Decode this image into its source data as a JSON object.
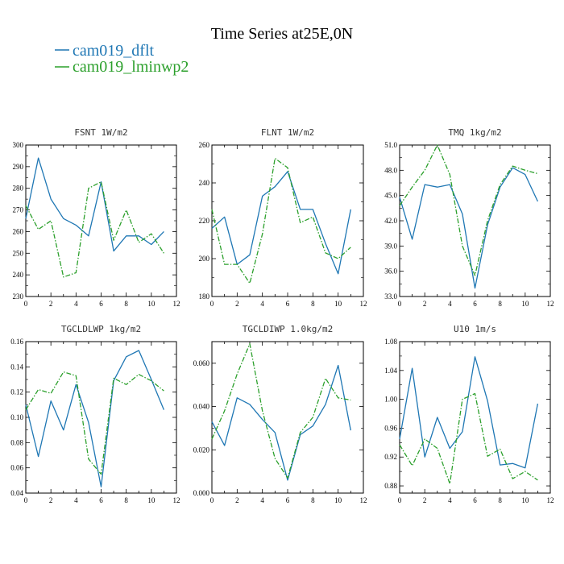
{
  "title": "Time Series at25E,0N",
  "legend": [
    {
      "name": "cam019_dflt",
      "color": "#1f77b4",
      "dash": "solid"
    },
    {
      "name": "cam019_lminwp2",
      "color": "#2ca02c",
      "dash": "dashdot"
    }
  ],
  "chart_data": [
    {
      "type": "line",
      "title": "FSNT  1W/m2",
      "xlim": [
        0,
        12
      ],
      "xticks": [
        "0",
        "2",
        "4",
        "6",
        "8",
        "10",
        "12"
      ],
      "ylim": [
        230,
        300
      ],
      "yticks": [
        "230",
        "240",
        "250",
        "260",
        "270",
        "280",
        "290",
        "300"
      ],
      "x": [
        0,
        1,
        2,
        3,
        4,
        5,
        6,
        7,
        8,
        9,
        10,
        11
      ],
      "series": [
        {
          "name": "cam019_dflt",
          "values": [
            266,
            294,
            275,
            266,
            263,
            258,
            283,
            251,
            258,
            258,
            254,
            260
          ]
        },
        {
          "name": "cam019_lminwp2",
          "values": [
            272,
            261,
            265,
            239,
            241,
            280,
            283,
            256,
            270,
            255,
            259,
            250
          ]
        }
      ]
    },
    {
      "type": "line",
      "title": "FLNT  1W/m2",
      "xlim": [
        0,
        12
      ],
      "xticks": [
        "0",
        "2",
        "4",
        "6",
        "8",
        "10",
        "12"
      ],
      "ylim": [
        180,
        260
      ],
      "yticks": [
        "180",
        "200",
        "220",
        "240",
        "260"
      ],
      "x": [
        0,
        1,
        2,
        3,
        4,
        5,
        6,
        7,
        8,
        9,
        10,
        11
      ],
      "series": [
        {
          "name": "cam019_dflt",
          "values": [
            216,
            222,
            197,
            202,
            233,
            238,
            246,
            226,
            226,
            208,
            192,
            226
          ]
        },
        {
          "name": "cam019_lminwp2",
          "values": [
            226,
            197,
            197,
            187,
            213,
            253,
            248,
            219,
            222,
            203,
            200,
            206
          ]
        }
      ]
    },
    {
      "type": "line",
      "title": "TMQ  1kg/m2",
      "xlim": [
        0,
        12
      ],
      "xticks": [
        "0",
        "2",
        "4",
        "6",
        "8",
        "10",
        "12"
      ],
      "ylim": [
        33.0,
        51.0
      ],
      "yticks": [
        "33.0",
        "36.0",
        "39.0",
        "42.0",
        "45.0",
        "48.0",
        "51.0"
      ],
      "x": [
        0,
        1,
        2,
        3,
        4,
        5,
        6,
        7,
        8,
        9,
        10,
        11
      ],
      "series": [
        {
          "name": "cam019_dflt",
          "values": [
            44.8,
            39.8,
            46.3,
            46.0,
            46.3,
            42.8,
            34.0,
            41.5,
            46.0,
            48.3,
            47.5,
            44.3
          ]
        },
        {
          "name": "cam019_lminwp2",
          "values": [
            43.8,
            46.0,
            48.0,
            51.0,
            47.5,
            39.0,
            35.5,
            42.0,
            46.3,
            48.5,
            48.0,
            47.6
          ]
        }
      ]
    },
    {
      "type": "line",
      "title": "TGCLDLWP  1kg/m2",
      "xlim": [
        0,
        12
      ],
      "xticks": [
        "0",
        "2",
        "4",
        "6",
        "8",
        "10",
        "12"
      ],
      "ylim": [
        0.04,
        0.16
      ],
      "yticks": [
        "0.04",
        "0.06",
        "0.08",
        "0.10",
        "0.12",
        "0.14",
        "0.16"
      ],
      "x": [
        0,
        1,
        2,
        3,
        4,
        5,
        6,
        7,
        8,
        9,
        10,
        11
      ],
      "series": [
        {
          "name": "cam019_dflt",
          "values": [
            0.11,
            0.069,
            0.113,
            0.09,
            0.126,
            0.096,
            0.045,
            0.129,
            0.148,
            0.153,
            0.13,
            0.106
          ]
        },
        {
          "name": "cam019_lminwp2",
          "values": [
            0.106,
            0.122,
            0.119,
            0.136,
            0.133,
            0.067,
            0.055,
            0.131,
            0.126,
            0.134,
            0.129,
            0.121
          ]
        }
      ]
    },
    {
      "type": "line",
      "title": "TGCLDIWP  1.0kg/m2",
      "xlim": [
        0,
        12
      ],
      "xticks": [
        "0",
        "2",
        "4",
        "6",
        "8",
        "10",
        "12"
      ],
      "ylim": [
        0.0,
        0.07
      ],
      "yticks": [
        "0.000",
        "0.020",
        "0.040",
        "0.060"
      ],
      "ytickvalues": [
        0.0,
        0.02,
        0.04,
        0.06
      ],
      "x": [
        0,
        1,
        2,
        3,
        4,
        5,
        6,
        7,
        8,
        9,
        10,
        11
      ],
      "series": [
        {
          "name": "cam019_dflt",
          "values": [
            0.033,
            0.022,
            0.044,
            0.041,
            0.034,
            0.028,
            0.006,
            0.027,
            0.031,
            0.041,
            0.059,
            0.029
          ]
        },
        {
          "name": "cam019_lminwp2",
          "values": [
            0.025,
            0.038,
            0.055,
            0.069,
            0.038,
            0.016,
            0.007,
            0.028,
            0.035,
            0.053,
            0.044,
            0.043
          ]
        }
      ]
    },
    {
      "type": "line",
      "title": "U10  1m/s",
      "xlim": [
        0,
        12
      ],
      "xticks": [
        "0",
        "2",
        "4",
        "6",
        "8",
        "10",
        "12"
      ],
      "ylim": [
        0.87,
        1.08
      ],
      "yticks": [
        "0.88",
        "0.92",
        "0.96",
        "1.00",
        "1.04",
        "1.08"
      ],
      "ytickvalues": [
        0.88,
        0.92,
        0.96,
        1.0,
        1.04,
        1.08
      ],
      "x": [
        0,
        1,
        2,
        3,
        4,
        5,
        6,
        7,
        8,
        9,
        10,
        11
      ],
      "series": [
        {
          "name": "cam019_dflt",
          "values": [
            0.945,
            1.043,
            0.92,
            0.975,
            0.932,
            0.955,
            1.059,
            0.998,
            0.909,
            0.911,
            0.905,
            0.994
          ]
        },
        {
          "name": "cam019_lminwp2",
          "values": [
            0.937,
            0.908,
            0.945,
            0.932,
            0.883,
            1.0,
            1.008,
            0.921,
            0.931,
            0.89,
            0.9,
            0.888
          ]
        }
      ]
    }
  ]
}
